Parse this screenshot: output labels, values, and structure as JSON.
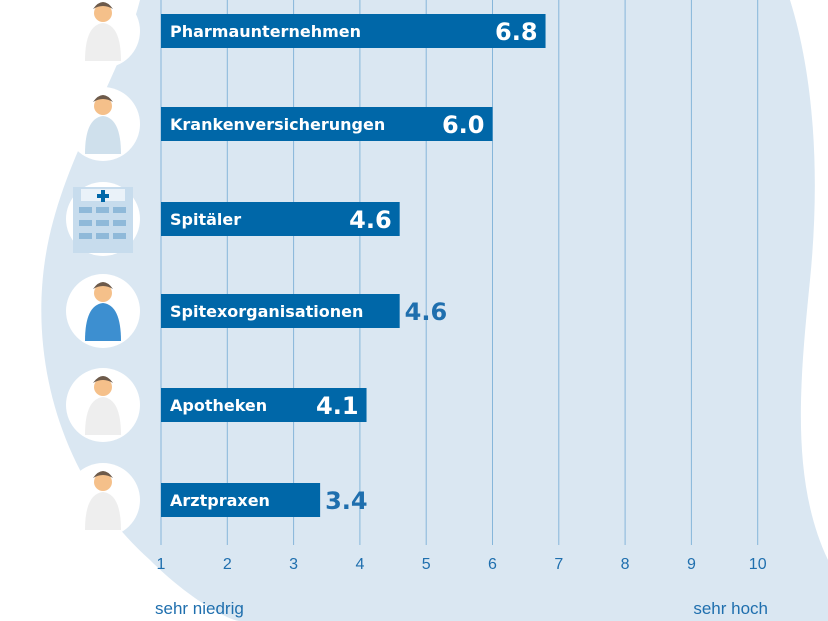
{
  "colors": {
    "bar": "#0067a8",
    "background_blob": "#dae7f2",
    "grid": "#86b6da",
    "tick_text": "#1f6fae"
  },
  "chart_data": {
    "type": "bar",
    "orientation": "horizontal",
    "categories": [
      "Pharmaunternehmen",
      "Krankenversicherungen",
      "Spitäler",
      "Spitexorganisationen",
      "Apotheken",
      "Arztpraxen"
    ],
    "values": [
      6.8,
      6.0,
      4.6,
      4.6,
      4.1,
      3.4
    ],
    "value_labels": [
      "6.8",
      "6.0",
      "4.6",
      "4.6",
      "4.1",
      "3.4"
    ],
    "value_label_inside": [
      true,
      true,
      true,
      false,
      true,
      false
    ],
    "icons": [
      "scientist-icon",
      "woman-icon",
      "hospital-icon",
      "nurse-icon",
      "pharmacist-icon",
      "doctor-icon"
    ],
    "xlim": [
      1,
      10
    ],
    "xticks": [
      "1",
      "2",
      "3",
      "4",
      "5",
      "6",
      "7",
      "8",
      "9",
      "10"
    ],
    "xlabel_low": "sehr niedrig",
    "xlabel_high": "sehr hoch",
    "grid": true
  }
}
